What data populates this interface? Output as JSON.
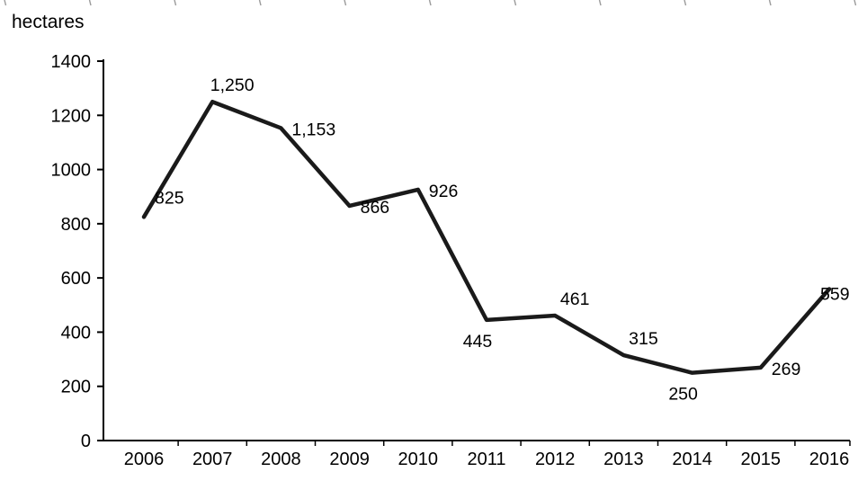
{
  "chart_data": {
    "type": "line",
    "title": "",
    "xlabel": "",
    "ylabel": "hectares",
    "categories": [
      "2006",
      "2007",
      "2008",
      "2009",
      "2010",
      "2011",
      "2012",
      "2013",
      "2014",
      "2015",
      "2016"
    ],
    "values": [
      825,
      1250,
      1153,
      866,
      926,
      445,
      461,
      315,
      250,
      269,
      559
    ],
    "data_labels": [
      "825",
      "1,250",
      "1,153",
      "866",
      "926",
      "445",
      "461",
      "315",
      "250",
      "269",
      "559"
    ],
    "label_placement": [
      "upper-right",
      "above",
      "right",
      "right",
      "right",
      "below",
      "above",
      "above",
      "below",
      "right",
      "end"
    ],
    "ylim": [
      0,
      1400
    ],
    "ytick_interval": 200,
    "grid": false,
    "legend": false,
    "line_color": "#1a1a1a",
    "axis_color": "#000000",
    "text_color": "#000000",
    "background": "#ffffff"
  }
}
